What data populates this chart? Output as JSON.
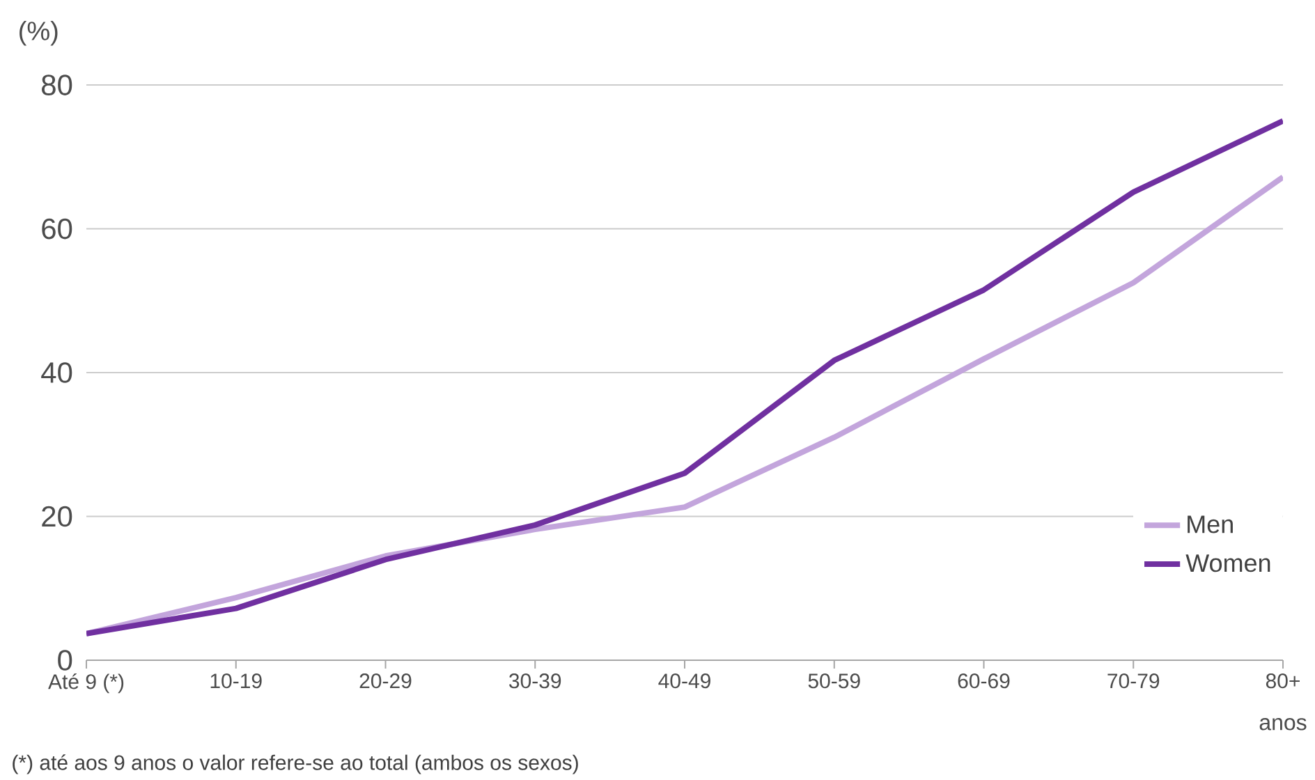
{
  "chart_data": {
    "type": "line",
    "ylabel": "(%)",
    "xlabel": "anos",
    "categories": [
      "Até 9 (*)",
      "10-19",
      "20-29",
      "30-39",
      "40-49",
      "50-59",
      "60-69",
      "70-79",
      "80+"
    ],
    "series": [
      {
        "name": "Men",
        "color": "#c3a5dc",
        "values": [
          3.7,
          8.7,
          14.5,
          18.2,
          21.3,
          31,
          41.9,
          52.5,
          67.2
        ]
      },
      {
        "name": "Women",
        "color": "#7030a0",
        "values": [
          3.7,
          7.2,
          14,
          18.8,
          26,
          41.7,
          51.5,
          65.1,
          75
        ]
      }
    ],
    "ylim": [
      0,
      80
    ],
    "yticks": [
      0,
      20,
      40,
      60,
      80
    ],
    "grid": "y",
    "legend": "bottom right",
    "annotations": [
      "(*) até aos 9 anos o valor refere-se ao total (ambos os sexos)"
    ]
  }
}
